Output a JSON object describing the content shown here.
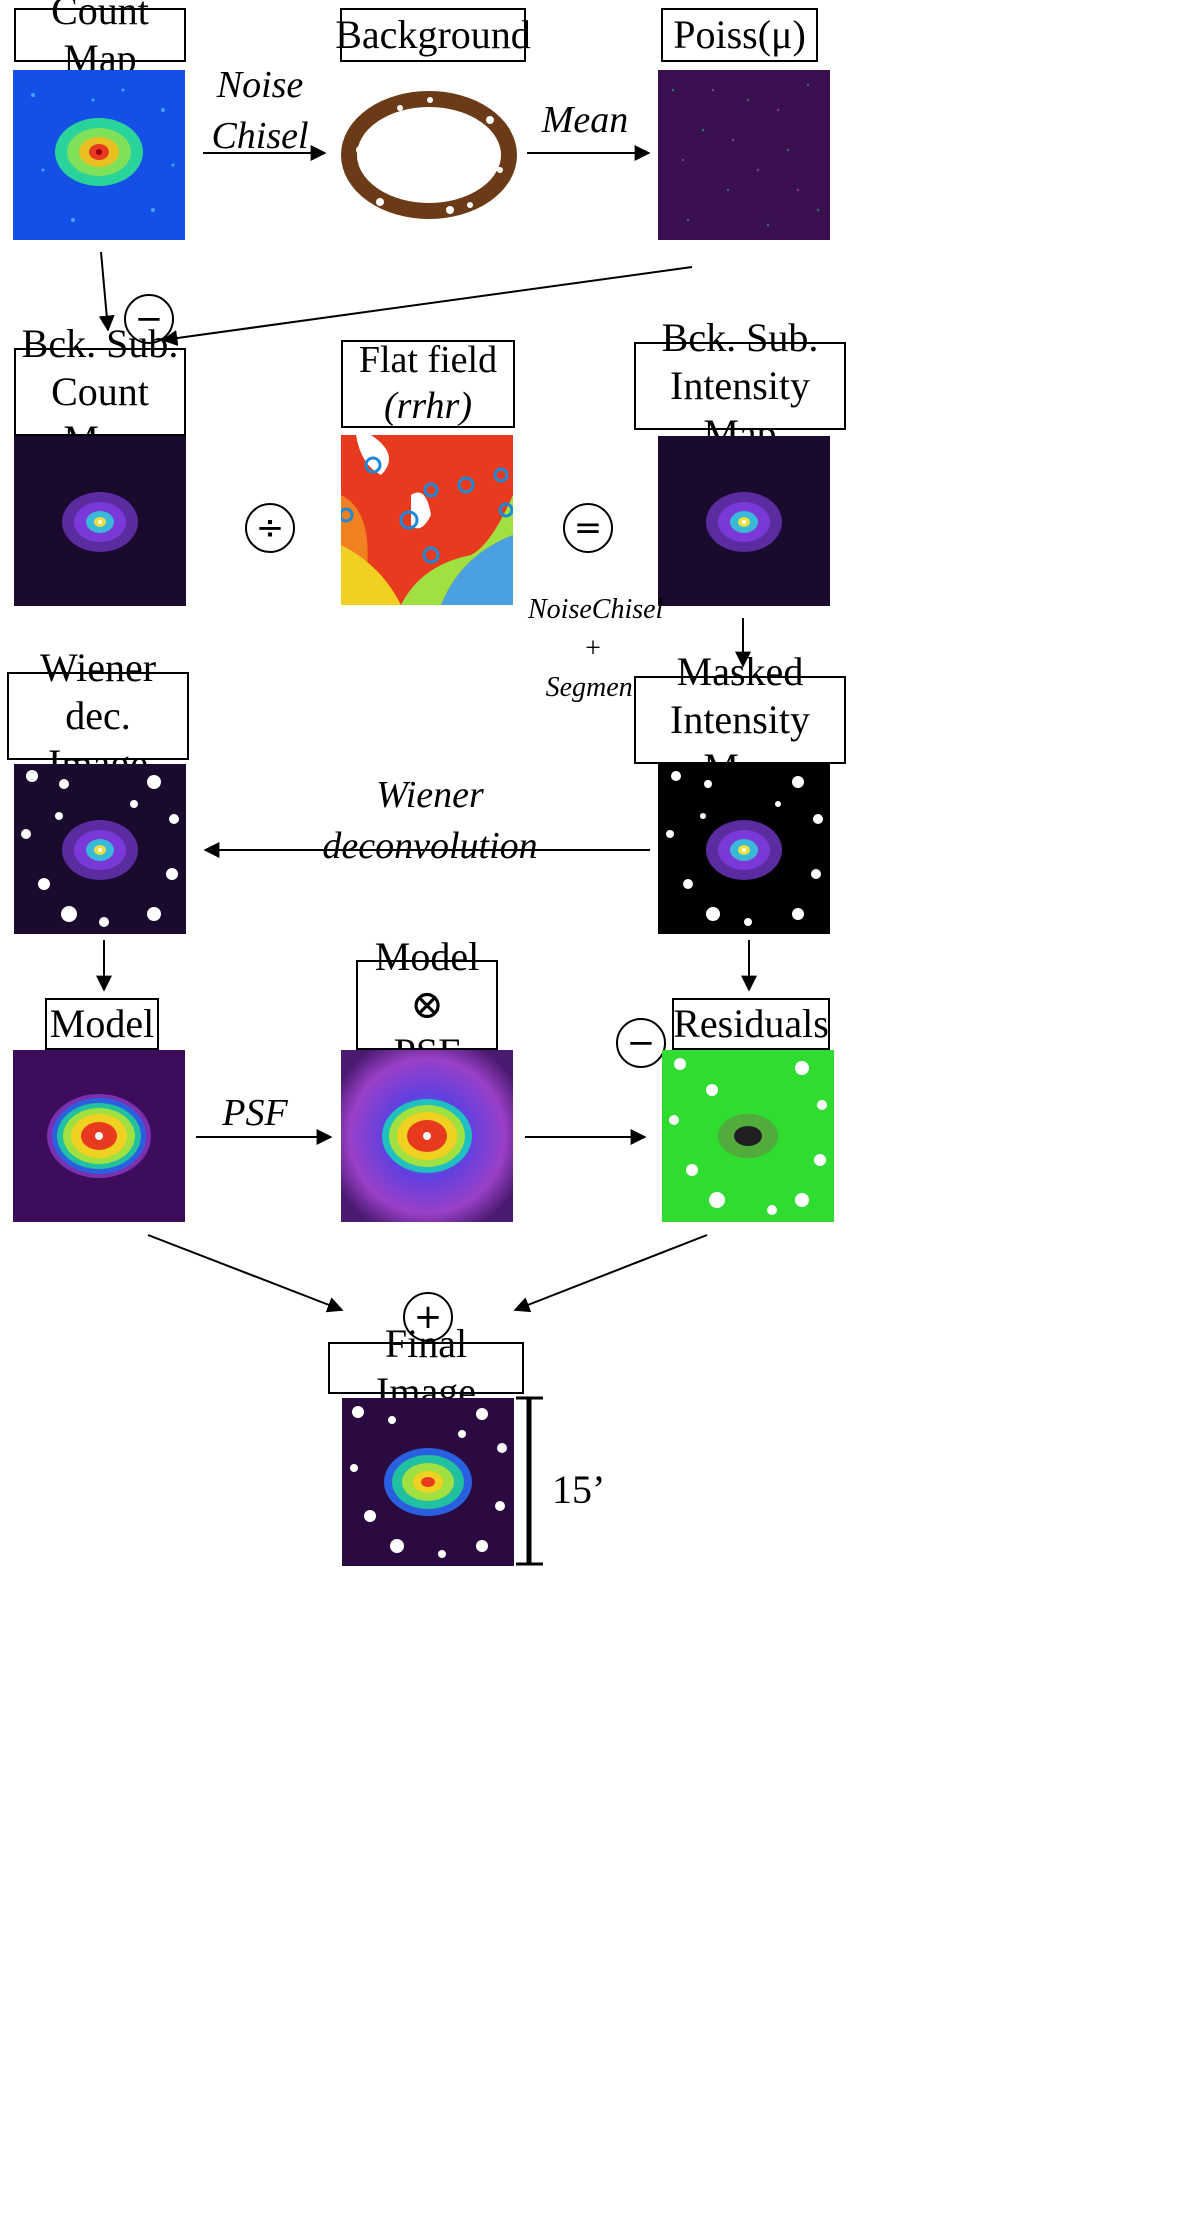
{
  "boxes": {
    "count_map": "Count Map",
    "background": "Background",
    "poiss": "Poiss(μ)",
    "bck_sub_count": [
      "Bck. Sub.",
      "Count Map"
    ],
    "flat_field": [
      "Flat field",
      "(rrhr)"
    ],
    "bck_sub_intensity": [
      "Bck. Sub.",
      "Intensity Map"
    ],
    "wiener_dec": [
      "Wiener dec.",
      "Image"
    ],
    "masked_intensity": [
      "Masked",
      "Intensity Map"
    ],
    "model": "Model",
    "model_psf": [
      "Model ⊗",
      "PSF"
    ],
    "residuals": "Residuals",
    "final_image": "Final Image"
  },
  "annotations": {
    "noise_chisel": [
      "Noise",
      "Chisel"
    ],
    "mean": "Mean",
    "noisechisel_segment": [
      "NoiseChisel",
      "+",
      "Segment"
    ],
    "wiener_deconvolution": [
      "Wiener",
      "deconvolution"
    ],
    "psf": "PSF"
  },
  "operators": {
    "subtract_1": "−",
    "divide": "÷",
    "equals": "=",
    "subtract_2": "−",
    "add": "+"
  },
  "scale_bar": {
    "label": "15’"
  },
  "colors": {
    "count_map_bg": "#1450e6",
    "dark_bg": "#1a0a2e",
    "galaxy_violet": "#7a38d8",
    "background_ring": "#6b3a16",
    "residual_green": "#2fdc2f",
    "model_bg": "#3d0d5c"
  }
}
